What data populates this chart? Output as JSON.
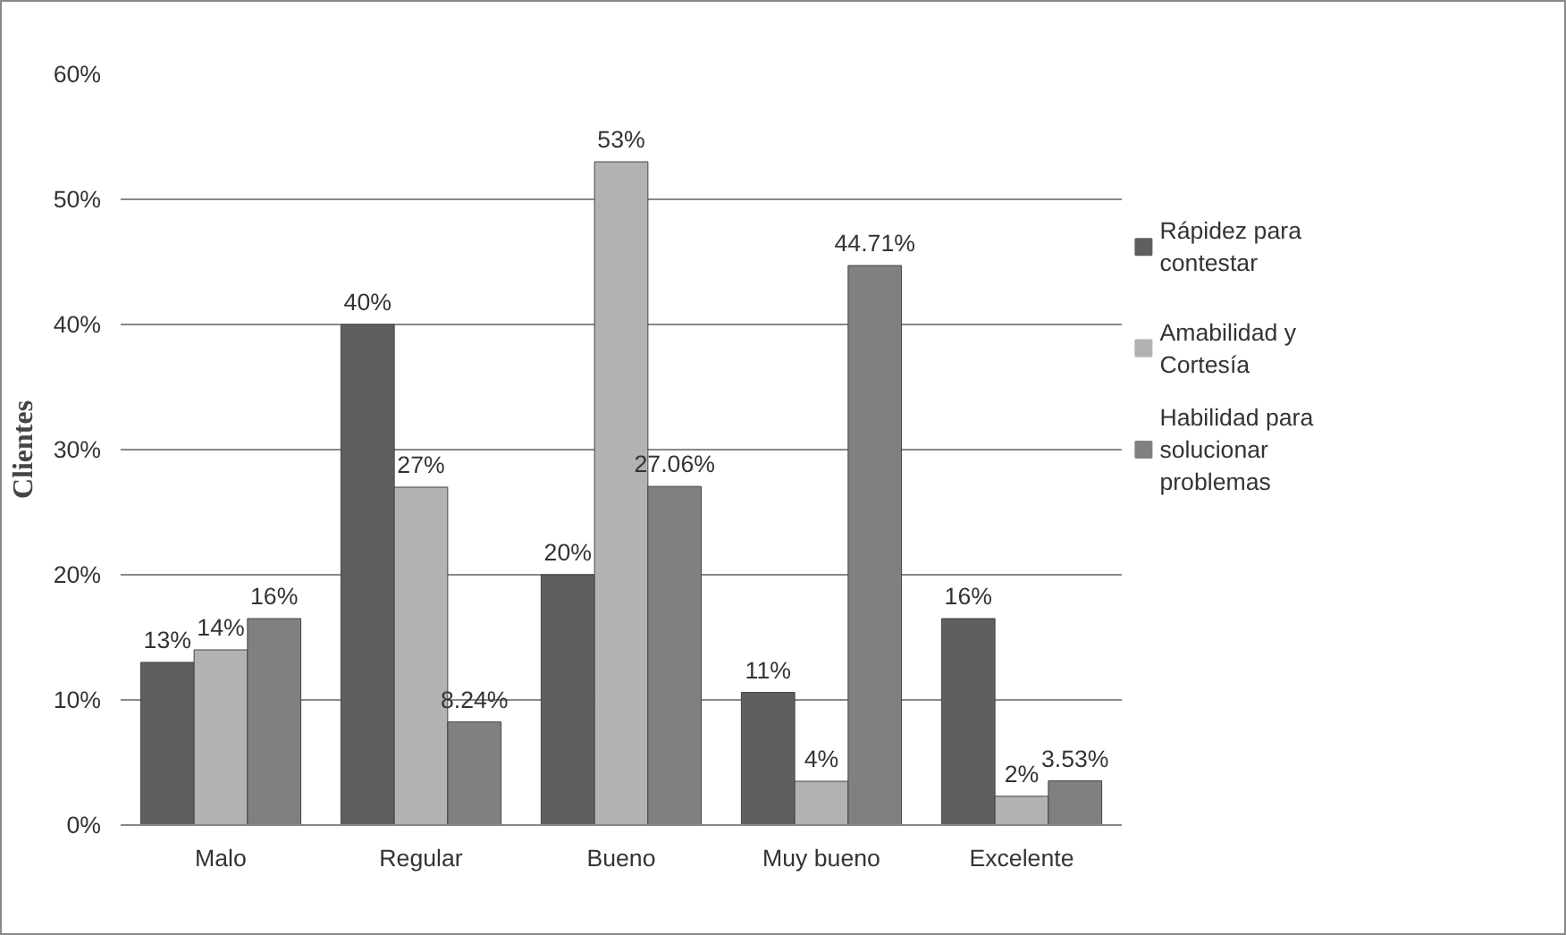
{
  "chart_data": {
    "type": "bar",
    "ylabel": "Clientes",
    "categories": [
      "Malo",
      "Regular",
      "Bueno",
      "Muy bueno",
      "Excelente"
    ],
    "series": [
      {
        "name": "Rápidez para contestar",
        "color": "#5f5f5f",
        "values": [
          13,
          40,
          20,
          10.6,
          16.5
        ],
        "value_labels": [
          "13%",
          "40%",
          "20%",
          "11%",
          "16%"
        ]
      },
      {
        "name": "Amabilidad y Cortesía",
        "color": "#b2b2b2",
        "values": [
          14,
          27,
          53,
          3.5,
          2.3
        ],
        "value_labels": [
          "14%",
          "27%",
          "53%",
          "4%",
          "2%"
        ]
      },
      {
        "name": "Habilidad para solucionar problemas",
        "color": "#808080",
        "values": [
          16.5,
          8.24,
          27.06,
          44.71,
          3.53
        ],
        "value_labels": [
          "16%",
          "8.24%",
          "27.06%",
          "44.71%",
          "3.53%"
        ]
      }
    ],
    "ylim": [
      0,
      60
    ],
    "yticks": [
      {
        "value": 0,
        "label": "0%"
      },
      {
        "value": 10,
        "label": "10%"
      },
      {
        "value": 20,
        "label": "20%"
      },
      {
        "value": 30,
        "label": "30%"
      },
      {
        "value": 40,
        "label": "40%"
      },
      {
        "value": 50,
        "label": "50%"
      },
      {
        "value": 60,
        "label": "60%"
      }
    ],
    "grid": "y",
    "legend": "right"
  }
}
